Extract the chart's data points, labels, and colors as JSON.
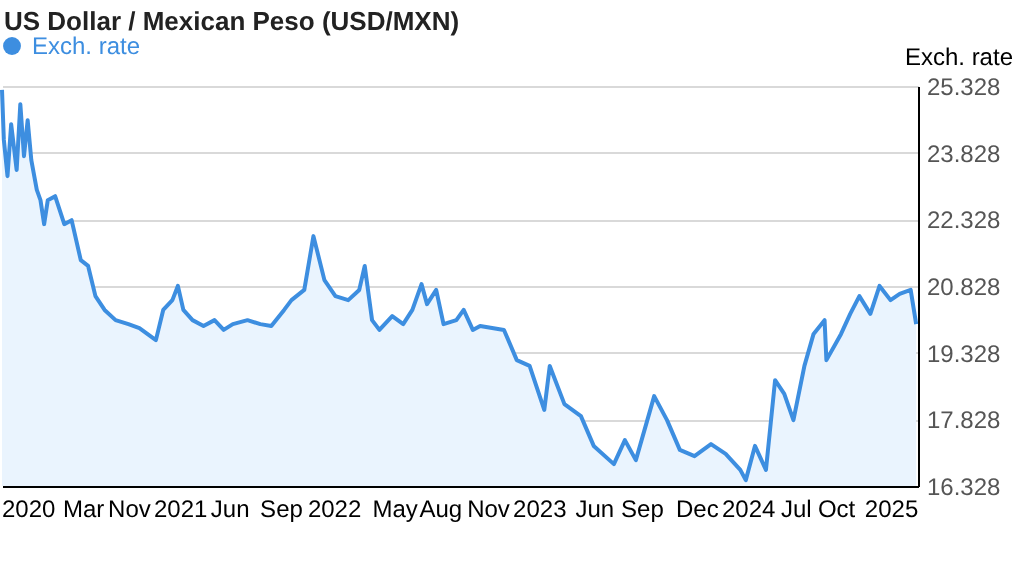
{
  "chart_data": {
    "type": "area",
    "title": "US Dollar / Mexican Peso (USD/MXN)",
    "ylabel": "Exch. rate",
    "x": [
      2020.25,
      2020.26,
      2020.28,
      2020.3,
      2020.33,
      2020.35,
      2020.37,
      2020.39,
      2020.41,
      2020.44,
      2020.46,
      2020.48,
      2020.5,
      2020.54,
      2020.59,
      2020.63,
      2020.68,
      2020.72,
      2020.76,
      2020.81,
      2020.87,
      2020.94,
      2021.0,
      2021.09,
      2021.13,
      2021.18,
      2021.21,
      2021.24,
      2021.29,
      2021.35,
      2021.41,
      2021.46,
      2021.51,
      2021.59,
      2021.66,
      2021.72,
      2021.79,
      2021.83,
      2021.9,
      2021.95,
      2022.01,
      2022.07,
      2022.14,
      2022.2,
      2022.23,
      2022.27,
      2022.31,
      2022.38,
      2022.44,
      2022.49,
      2022.54,
      2022.57,
      2022.62,
      2022.66,
      2022.73,
      2022.77,
      2022.82,
      2022.86,
      2022.99,
      2023.06,
      2023.13,
      2023.21,
      2023.24,
      2023.32,
      2023.41,
      2023.48,
      2023.59,
      2023.65,
      2023.71,
      2023.81,
      2023.88,
      2023.95,
      2024.03,
      2024.12,
      2024.2,
      2024.28,
      2024.31,
      2024.36,
      2024.42,
      2024.47,
      2024.52,
      2024.57,
      2024.63,
      2024.68,
      2024.74,
      2024.75,
      2024.83,
      2024.88,
      2024.93,
      2024.99,
      2025.04,
      2025.1,
      2025.15,
      2025.21,
      2025.24
    ],
    "series": [
      {
        "name": "Exch. rate",
        "color": "#3d8ee0",
        "values": [
          25.24,
          24.12,
          23.3,
          24.47,
          23.44,
          24.92,
          23.75,
          24.56,
          23.66,
          22.99,
          22.76,
          22.22,
          22.76,
          22.85,
          22.22,
          22.31,
          21.41,
          21.28,
          20.6,
          20.29,
          20.06,
          19.97,
          19.88,
          19.61,
          20.29,
          20.51,
          20.83,
          20.29,
          20.06,
          19.93,
          20.06,
          19.84,
          19.97,
          20.06,
          19.97,
          19.93,
          20.29,
          20.51,
          20.74,
          21.95,
          20.96,
          20.6,
          20.51,
          20.74,
          21.28,
          20.06,
          19.84,
          20.15,
          19.97,
          20.29,
          20.87,
          20.42,
          20.74,
          19.97,
          20.06,
          20.29,
          19.84,
          19.93,
          19.84,
          19.16,
          19.03,
          18.04,
          19.03,
          18.17,
          17.9,
          17.23,
          16.82,
          17.36,
          16.91,
          18.35,
          17.81,
          17.14,
          17.0,
          17.27,
          17.05,
          16.69,
          16.46,
          17.23,
          16.69,
          18.71,
          18.4,
          17.81,
          19.03,
          19.75,
          20.06,
          19.16,
          19.75,
          20.2,
          20.6,
          20.2,
          20.83,
          20.51,
          20.65,
          20.74,
          19.97
        ]
      }
    ],
    "xlim": [
      2020.25,
      2025.25
    ],
    "xticks": [
      {
        "value": 2020.39,
        "label": "2020"
      },
      {
        "value": 2020.69,
        "label": "Mar"
      },
      {
        "value": 2020.94,
        "label": "Nov"
      },
      {
        "value": 2021.22,
        "label": "2021"
      },
      {
        "value": 2021.49,
        "label": "Jun"
      },
      {
        "value": 2021.77,
        "label": "Sep"
      },
      {
        "value": 2022.06,
        "label": "2022"
      },
      {
        "value": 2022.39,
        "label": "May"
      },
      {
        "value": 2022.64,
        "label": "Aug"
      },
      {
        "value": 2022.9,
        "label": "Nov"
      },
      {
        "value": 2023.18,
        "label": "2023"
      },
      {
        "value": 2023.48,
        "label": "Jun"
      },
      {
        "value": 2023.74,
        "label": "Sep"
      },
      {
        "value": 2024.04,
        "label": "Dec"
      },
      {
        "value": 2024.32,
        "label": "2024"
      },
      {
        "value": 2024.58,
        "label": "Jul"
      },
      {
        "value": 2024.8,
        "label": "Oct"
      },
      {
        "value": 2025.1,
        "label": "2025"
      }
    ],
    "ylim": [
      16.328,
      25.328
    ],
    "yticks": [
      16.328,
      17.828,
      19.328,
      20.828,
      22.328,
      23.828,
      25.328
    ],
    "grid": "y",
    "legend": "top left"
  }
}
